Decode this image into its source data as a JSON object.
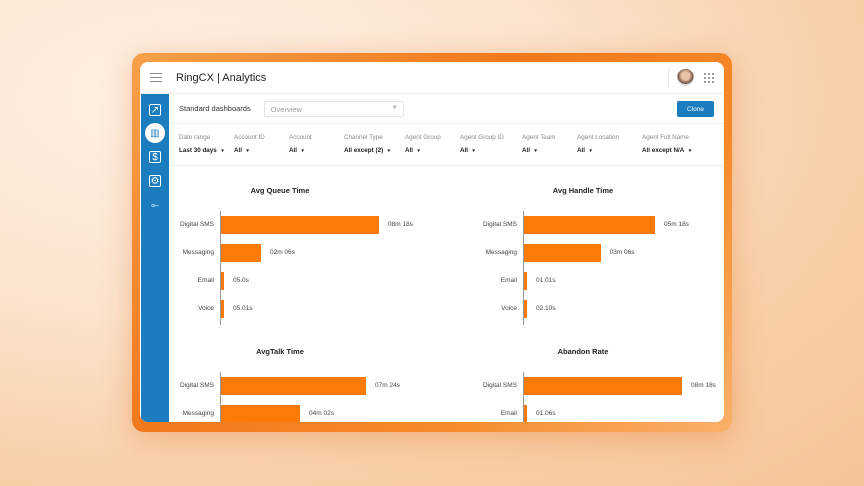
{
  "header": {
    "title": "RingCX | Analytics"
  },
  "sidebar": {
    "icons": [
      "trend-chart-icon",
      "analytics-icon",
      "report-file-icon",
      "settings-calendar-icon",
      "network-icon"
    ],
    "active": 1
  },
  "toolbar": {
    "label": "Standard dashboards",
    "dashboard_value": "Overview",
    "clone_label": "Clone"
  },
  "filters": [
    {
      "label": "Date range",
      "value": "Last 30 days"
    },
    {
      "label": "Account ID",
      "value": "All"
    },
    {
      "label": "Account",
      "value": "All"
    },
    {
      "label": "Channel Type",
      "value": "All except (2)"
    },
    {
      "label": "Agent Group",
      "value": "All"
    },
    {
      "label": "Agent Group ID",
      "value": "All"
    },
    {
      "label": "Agent Team",
      "value": "All"
    },
    {
      "label": "Agent Location",
      "value": "All"
    },
    {
      "label": "Agent Full Name",
      "value": "All except N/A"
    }
  ],
  "colors": {
    "accent": "#1b7dbd",
    "bar": "#fb7a08"
  },
  "chart_data": [
    {
      "type": "bar",
      "orientation": "horizontal",
      "title": "Avg Queue Time",
      "categories": [
        "Digital SMS",
        "Messaging",
        "Email",
        "Voice"
      ],
      "labels": [
        "08m 18s",
        "02m 06s",
        "05.0s",
        "05.01s"
      ],
      "values": [
        498,
        126,
        5,
        5.01
      ]
    },
    {
      "type": "bar",
      "orientation": "horizontal",
      "title": "Avg Handle Time",
      "categories": [
        "Digital SMS",
        "Messaging",
        "Email",
        "Voice"
      ],
      "labels": [
        "05m 18s",
        "03m 06s",
        "01.01s",
        "02.10s"
      ],
      "values": [
        318,
        186,
        1.01,
        2.1
      ]
    },
    {
      "type": "bar",
      "orientation": "horizontal",
      "title": "AvgTalk Time",
      "categories": [
        "Digital SMS",
        "Messaging"
      ],
      "labels": [
        "07m 24s",
        "04m 02s"
      ],
      "values": [
        444,
        242
      ]
    },
    {
      "type": "bar",
      "orientation": "horizontal",
      "title": "Abandon Rate",
      "categories": [
        "Digital SMS",
        "Email"
      ],
      "labels": [
        "08m 18s",
        "01.06s"
      ],
      "values": [
        498,
        1.06
      ]
    }
  ]
}
